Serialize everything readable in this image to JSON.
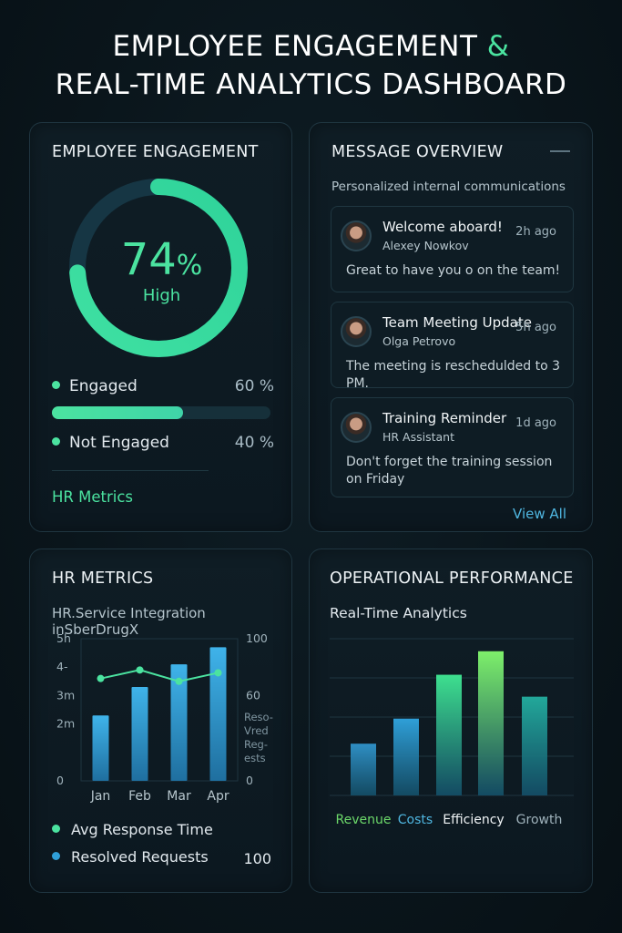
{
  "page": {
    "title_line1": "EMPLOYEE ENGAGEMENT",
    "title_amp": "&",
    "title_line2": "REAL-TIME ANALYTICS DASHBOARD"
  },
  "engagement": {
    "title": "EMPLOYEE ENGAGEMENT",
    "ring_value": "74",
    "ring_unit": "%",
    "ring_label": "High",
    "ring_fraction": 0.74,
    "engaged_label": "Engaged",
    "engaged_pct": "60 %",
    "engaged_fraction": 0.6,
    "not_engaged_label": "Not Engaged",
    "not_engaged_pct": "40 %",
    "link": "HR Metrics"
  },
  "messages": {
    "title": "MESSAGE OVERVIEW",
    "subtitle": "Personalized internal communications",
    "items": [
      {
        "title": "Welcome aboard!",
        "from": "Alexey Nowkov",
        "time": "2h ago",
        "body": "Great to have you o on the team!"
      },
      {
        "title": "Team Meeting Update",
        "from": "Olga Petrovo",
        "time": "5h ago",
        "body": "The meeting is reschedulded to 3 PM."
      },
      {
        "title": "Training Reminder",
        "from": "HR Assistant",
        "time": "1d ago",
        "body": "Don't forget the training session on Friday"
      }
    ],
    "view_all": "View All"
  },
  "hr_metrics": {
    "title": "HR METRICS",
    "subtitle": "HR.Service Integration inSberDrugX",
    "legend_response": "Avg  Response Time",
    "legend_resolved": "Resolved Requests",
    "legend_resolved_value": "100"
  },
  "operational": {
    "title": "OPERATIONAL PERFORMANCE",
    "subtitle": "Real-Time Analytics"
  },
  "colors": {
    "accent_green": "#4be3a0",
    "accent_blue": "#2f9fd8",
    "link_blue": "#4fb6e0"
  },
  "chart_data": [
    {
      "type": "bar",
      "title": "HR METRICS",
      "categories": [
        "Jan",
        "Feb",
        "Mar",
        "Apr"
      ],
      "left_ticks": [
        "0",
        "2m",
        "3m",
        "4-",
        "5h"
      ],
      "right_ticks": [
        "0",
        "60",
        "100"
      ],
      "right_label": "Reso- Vred Reg- ests",
      "series": [
        {
          "name": "Resolved Requests",
          "kind": "bar",
          "values": [
            2.3,
            3.3,
            4.1,
            4.7
          ]
        },
        {
          "name": "Avg  Response Time",
          "kind": "line",
          "values": [
            3.6,
            3.9,
            3.5,
            3.8
          ]
        }
      ],
      "ylim": [
        0,
        5
      ]
    },
    {
      "type": "bar",
      "title": "OPERATIONAL PERFORMANCE",
      "categories": [
        "Revenue",
        "Costs",
        "Efficiency",
        "Growth"
      ],
      "bars": [
        {
          "category": "Revenue",
          "value": 33,
          "color": "#2f8fc4"
        },
        {
          "category": "Costs",
          "value": 49,
          "color": "#2f9fd8"
        },
        {
          "category": "Efficiency",
          "value": 77,
          "color": "#3ee08f"
        },
        {
          "category": "Efficiency",
          "value": 92,
          "color": "#7ef06a"
        },
        {
          "category": "Growth",
          "value": 63,
          "color": "#22a89a"
        }
      ],
      "category_colors": [
        "#6cd86a",
        "#4fb6e0",
        "#f0f4f6",
        "#9fb2bb"
      ],
      "ylim": [
        0,
        100
      ],
      "grid": true
    }
  ]
}
